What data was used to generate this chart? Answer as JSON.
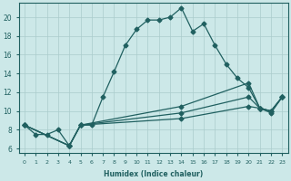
{
  "xlabel": "Humidex (Indice chaleur)",
  "bg_color": "#cce8e8",
  "grid_color": "#aacccc",
  "line_color": "#206060",
  "xlim": [
    -0.5,
    23.5
  ],
  "ylim": [
    5.5,
    21.5
  ],
  "xticks": [
    0,
    1,
    2,
    3,
    4,
    5,
    6,
    7,
    8,
    9,
    10,
    11,
    12,
    13,
    14,
    15,
    16,
    17,
    18,
    19,
    20,
    21,
    22,
    23
  ],
  "yticks": [
    6,
    8,
    10,
    12,
    14,
    16,
    18,
    20
  ],
  "line1_x": [
    0,
    1,
    2,
    3,
    4,
    5,
    6,
    7,
    8,
    9,
    10,
    11,
    12,
    13,
    14,
    15,
    16,
    17,
    18,
    19,
    20,
    21,
    22,
    23
  ],
  "line1_y": [
    8.5,
    7.5,
    7.5,
    8.0,
    6.3,
    8.5,
    8.5,
    11.5,
    14.2,
    17.0,
    18.7,
    19.7,
    19.7,
    20.0,
    21.0,
    18.5,
    19.3,
    17.0,
    15.0,
    13.5,
    12.5,
    10.3,
    9.8,
    11.5
  ],
  "line2_x": [
    0,
    4,
    5,
    14,
    20,
    21,
    22,
    23
  ],
  "line2_y": [
    8.5,
    6.3,
    8.5,
    10.5,
    13.0,
    10.3,
    10.0,
    11.5
  ],
  "line3_x": [
    0,
    4,
    5,
    14,
    20,
    21,
    22,
    23
  ],
  "line3_y": [
    8.5,
    6.3,
    8.5,
    9.8,
    11.5,
    10.3,
    10.0,
    11.5
  ],
  "line4_x": [
    0,
    4,
    5,
    14,
    20,
    21,
    22,
    23
  ],
  "line4_y": [
    8.5,
    6.3,
    8.5,
    9.2,
    10.5,
    10.3,
    10.0,
    11.5
  ]
}
